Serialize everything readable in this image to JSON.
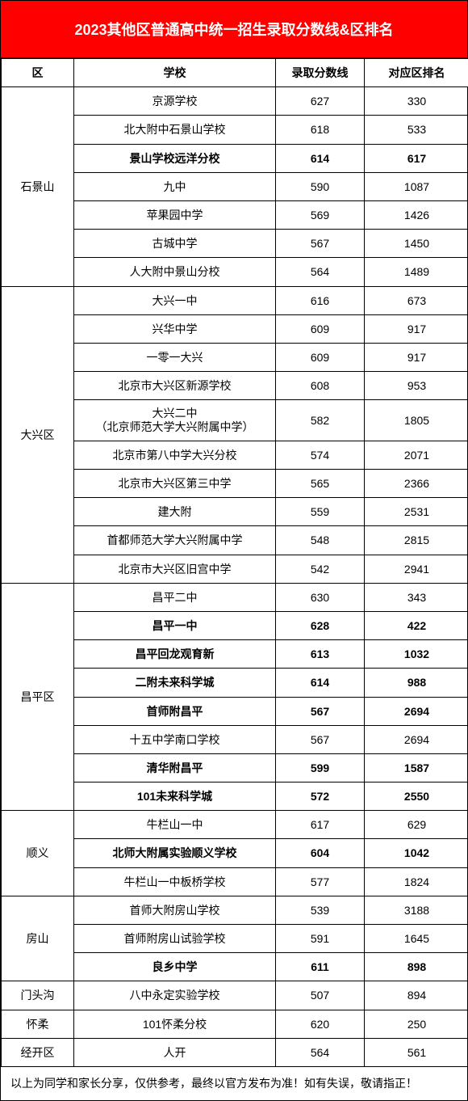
{
  "title": "2023其他区普通高中统一招生录取分数线&区排名",
  "columns": [
    "区",
    "学校",
    "录取分数线",
    "对应区排名"
  ],
  "footer": "以上为同学和家长分享，仅供参考，最终以官方发布为准！如有失误，敬请指正！",
  "districts": [
    {
      "name": "石景山",
      "rows": [
        {
          "school": "京源学校",
          "score": "627",
          "rank": "330",
          "bold": false
        },
        {
          "school": "北大附中石景山学校",
          "score": "618",
          "rank": "533",
          "bold": false
        },
        {
          "school": "景山学校远洋分校",
          "score": "614",
          "rank": "617",
          "bold": true
        },
        {
          "school": "九中",
          "score": "590",
          "rank": "1087",
          "bold": false
        },
        {
          "school": "苹果园中学",
          "score": "569",
          "rank": "1426",
          "bold": false
        },
        {
          "school": "古城中学",
          "score": "567",
          "rank": "1450",
          "bold": false
        },
        {
          "school": "人大附中景山分校",
          "score": "564",
          "rank": "1489",
          "bold": false
        }
      ]
    },
    {
      "name": "大兴区",
      "rows": [
        {
          "school": "大兴一中",
          "score": "616",
          "rank": "673",
          "bold": false
        },
        {
          "school": "兴华中学",
          "score": "609",
          "rank": "917",
          "bold": false
        },
        {
          "school": "一零一大兴",
          "score": "609",
          "rank": "917",
          "bold": false
        },
        {
          "school": "北京市大兴区新源学校",
          "score": "608",
          "rank": "953",
          "bold": false
        },
        {
          "school": "大兴二中\n（北京师范大学大兴附属中学）",
          "score": "582",
          "rank": "1805",
          "bold": false,
          "multiline": true
        },
        {
          "school": "北京市第八中学大兴分校",
          "score": "574",
          "rank": "2071",
          "bold": false
        },
        {
          "school": "北京市大兴区第三中学",
          "score": "565",
          "rank": "2366",
          "bold": false
        },
        {
          "school": "建大附",
          "score": "559",
          "rank": "2531",
          "bold": false
        },
        {
          "school": "首都师范大学大兴附属中学",
          "score": "548",
          "rank": "2815",
          "bold": false
        },
        {
          "school": "北京市大兴区旧宫中学",
          "score": "542",
          "rank": "2941",
          "bold": false
        }
      ]
    },
    {
      "name": "昌平区",
      "rows": [
        {
          "school": "昌平二中",
          "score": "630",
          "rank": "343",
          "bold": false
        },
        {
          "school": "昌平一中",
          "score": "628",
          "rank": "422",
          "bold": true
        },
        {
          "school": "昌平回龙观育新",
          "score": "613",
          "rank": "1032",
          "bold": true
        },
        {
          "school": "二附未来科学城",
          "score": "614",
          "rank": "988",
          "bold": true
        },
        {
          "school": "首师附昌平",
          "score": "567",
          "rank": "2694",
          "bold": true
        },
        {
          "school": "十五中学南口学校",
          "score": "567",
          "rank": "2694",
          "bold": false
        },
        {
          "school": "清华附昌平",
          "score": "599",
          "rank": "1587",
          "bold": true
        },
        {
          "school": "101未来科学城",
          "score": "572",
          "rank": "2550",
          "bold": true
        }
      ]
    },
    {
      "name": "顺义",
      "rows": [
        {
          "school": "牛栏山一中",
          "score": "617",
          "rank": "629",
          "bold": false
        },
        {
          "school": "北师大附属实验顺义学校",
          "score": "604",
          "rank": "1042",
          "bold": true
        },
        {
          "school": "牛栏山一中板桥学校",
          "score": "577",
          "rank": "1824",
          "bold": false
        }
      ]
    },
    {
      "name": "房山",
      "rows": [
        {
          "school": "首师大附房山学校",
          "score": "539",
          "rank": "3188",
          "bold": false
        },
        {
          "school": "首师附房山试验学校",
          "score": "591",
          "rank": "1645",
          "bold": false
        },
        {
          "school": "良乡中学",
          "score": "611",
          "rank": "898",
          "bold": true
        }
      ]
    },
    {
      "name": "门头沟",
      "rows": [
        {
          "school": "八中永定实验学校",
          "score": "507",
          "rank": "894",
          "bold": false
        }
      ]
    },
    {
      "name": "怀柔",
      "rows": [
        {
          "school": "101怀柔分校",
          "score": "620",
          "rank": "250",
          "bold": false
        }
      ]
    },
    {
      "name": "经开区",
      "rows": [
        {
          "school": "人开",
          "score": "564",
          "rank": "561",
          "bold": false
        }
      ]
    }
  ]
}
